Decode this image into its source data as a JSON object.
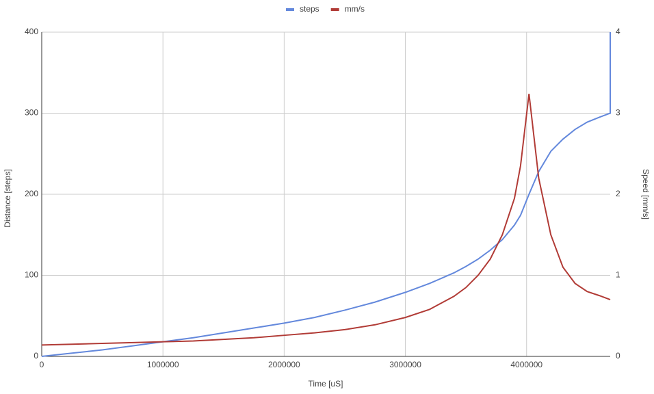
{
  "chart_data": {
    "type": "line",
    "x_label": "Time [uS]",
    "y_label": "Distance [steps]",
    "y2_label": "Speed [mm/s]",
    "x": [
      0,
      250000,
      500000,
      750000,
      1000000,
      1250000,
      1500000,
      1750000,
      2000000,
      2250000,
      2500000,
      2750000,
      3000000,
      3200000,
      3400000,
      3500000,
      3600000,
      3700000,
      3800000,
      3900000,
      3950000,
      4020000,
      4100000,
      4200000,
      4300000,
      4400000,
      4500000,
      4600000,
      4690000,
      4690000
    ],
    "series": [
      {
        "name": "steps",
        "color": "#6388dc",
        "values": [
          0,
          4,
          8,
          13,
          18,
          23,
          29,
          35,
          41,
          48,
          57,
          67,
          79,
          90,
          103,
          111,
          120,
          131,
          144,
          162,
          174,
          200,
          228,
          253,
          268,
          280,
          289,
          295,
          300,
          400
        ]
      },
      {
        "name": "mm/s",
        "color": "#b13b36",
        "axis": "y2",
        "values": [
          0.14,
          0.15,
          0.16,
          0.17,
          0.18,
          0.19,
          0.21,
          0.23,
          0.26,
          0.29,
          0.33,
          0.39,
          0.48,
          0.58,
          0.74,
          0.85,
          1.0,
          1.2,
          1.5,
          1.95,
          2.35,
          3.24,
          2.2,
          1.5,
          1.1,
          0.9,
          0.8,
          0.75,
          0.7,
          null
        ]
      }
    ],
    "xlim": [
      0,
      4690000
    ],
    "xticks": [
      0,
      1000000,
      2000000,
      3000000,
      4000000
    ],
    "ylim": [
      0,
      400
    ],
    "yticks": [
      0,
      100,
      200,
      300,
      400
    ],
    "y2lim": [
      0,
      4
    ],
    "y2ticks": [
      0,
      1,
      2,
      3,
      4
    ],
    "grid": true,
    "legend": "top"
  }
}
